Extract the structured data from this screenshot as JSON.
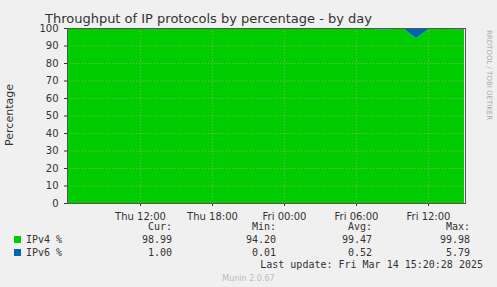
{
  "chart_data": {
    "type": "area",
    "title": "Throughput of IP protocols by percentage - by day",
    "y_label": "Percentage",
    "categories": [
      null,
      null,
      null,
      null,
      null,
      null,
      "Thu 12:00",
      null,
      null,
      null,
      null,
      null,
      "Thu 18:00",
      null,
      null,
      null,
      null,
      null,
      "Fri 00:00",
      null,
      null,
      null,
      null,
      null,
      "Fri 06:00",
      null,
      null,
      null,
      null,
      null,
      "Fri 12:00",
      null,
      null,
      null
    ],
    "series": [
      {
        "name": "IPv4 %",
        "color": "#00cc00",
        "values": [
          99.55,
          99.5,
          99.6,
          99.45,
          99.4,
          99.5,
          99.55,
          99.3,
          99.45,
          99.5,
          99.55,
          99.4,
          99.5,
          99.45,
          99.6,
          99.55,
          99.5,
          99.4,
          99.45,
          99.55,
          99.6,
          99.5,
          99.55,
          99.6,
          99.65,
          99.55,
          99.2,
          99.5,
          99.4,
          94.2,
          99.3,
          99.45,
          99.4,
          98.99
        ],
        "stats": [
          "98.99",
          "94.20",
          "99.47",
          "99.98"
        ]
      },
      {
        "name": "IPv6 %",
        "color": "#0066b3",
        "values": [
          0.45,
          0.5,
          0.4,
          0.55,
          0.6,
          0.5,
          0.45,
          0.7,
          0.55,
          0.5,
          0.45,
          0.6,
          0.5,
          0.55,
          0.4,
          0.45,
          0.5,
          0.6,
          0.55,
          0.45,
          0.4,
          0.5,
          0.45,
          0.4,
          0.35,
          0.45,
          0.8,
          0.5,
          0.6,
          5.79,
          0.7,
          0.55,
          0.6,
          1.0
        ],
        "stats": [
          "1.00",
          "0.01",
          "0.52",
          "5.79"
        ]
      }
    ],
    "stats_columns": [
      "Cur:",
      "Min:",
      "Avg:",
      "Max:"
    ],
    "ylim": [
      0,
      100
    ],
    "yticks": [
      0,
      10,
      20,
      30,
      40,
      50,
      60,
      70,
      80,
      90,
      100
    ],
    "grid": true,
    "stacked": true,
    "legend": "bottom",
    "last_update": "Last update: Fri Mar 14 15:20:28 2025",
    "credit": "Munin 2.0.67",
    "watermark": "RRDTOOL / TOBI OETIKER"
  }
}
